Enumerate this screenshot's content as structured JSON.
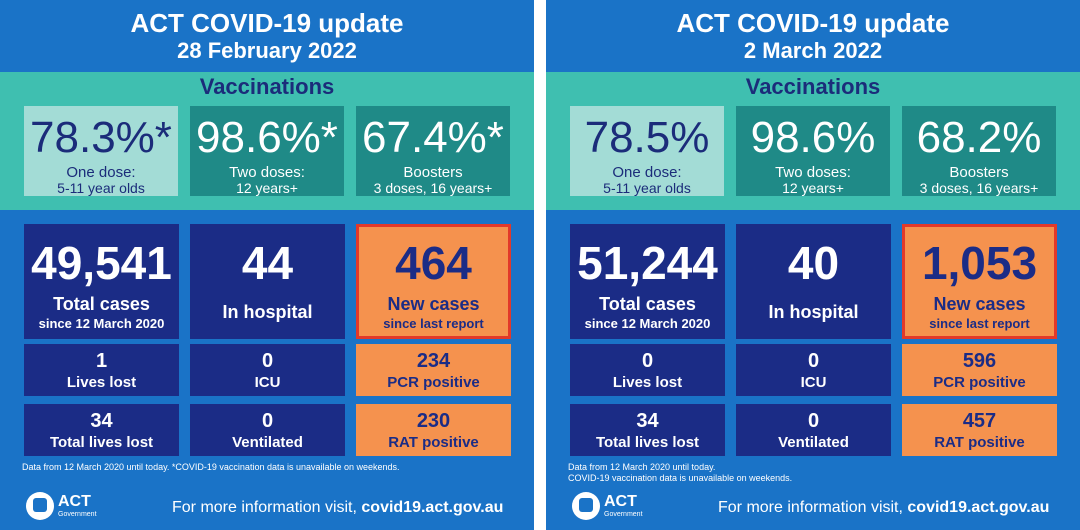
{
  "panels": [
    {
      "title": "ACT COVID-19 update",
      "date": "28 February 2022",
      "vaccinations": {
        "heading": "Vaccinations",
        "cards": [
          {
            "value": "78.3%*",
            "label": "One dose:",
            "sub": "5-11 year olds"
          },
          {
            "value": "98.6%*",
            "label": "Two doses:",
            "sub": "12 years+"
          },
          {
            "value": "67.4%*",
            "label": "Boosters",
            "sub": "3 doses, 16 years+"
          }
        ]
      },
      "stats": {
        "total_cases": {
          "value": "49,541",
          "label": "Total cases",
          "sub": "since 12 March 2020"
        },
        "in_hospital": {
          "value": "44",
          "label": "In hospital"
        },
        "new_cases": {
          "value": "464",
          "label": "New cases",
          "sub": "since last report"
        },
        "lives_lost": {
          "value": "1",
          "label": "Lives lost"
        },
        "icu": {
          "value": "0",
          "label": "ICU"
        },
        "pcr_positive": {
          "value": "234",
          "label": "PCR positive"
        },
        "total_lives_lost": {
          "value": "34",
          "label": "Total lives lost"
        },
        "ventilated": {
          "value": "0",
          "label": "Ventilated"
        },
        "rat_positive": {
          "value": "230",
          "label": "RAT positive"
        }
      },
      "footnote_1": "Data from 12 March 2020 until today.  *COVID-19 vaccination data is unavailable on weekends.",
      "footnote_2": "",
      "logo": {
        "text": "ACT",
        "sub": "Government"
      },
      "more_info": {
        "prefix": "For more information visit, ",
        "link": "covid19.act.gov.au"
      }
    },
    {
      "title": "ACT COVID-19 update",
      "date": "2 March 2022",
      "vaccinations": {
        "heading": "Vaccinations",
        "cards": [
          {
            "value": "78.5%",
            "label": "One dose:",
            "sub": "5-11 year olds"
          },
          {
            "value": "98.6%",
            "label": "Two doses:",
            "sub": "12 years+"
          },
          {
            "value": "68.2%",
            "label": "Boosters",
            "sub": "3 doses, 16 years+"
          }
        ]
      },
      "stats": {
        "total_cases": {
          "value": "51,244",
          "label": "Total cases",
          "sub": "since 12 March 2020"
        },
        "in_hospital": {
          "value": "40",
          "label": "In hospital"
        },
        "new_cases": {
          "value": "1,053",
          "label": "New cases",
          "sub": "since last report"
        },
        "lives_lost": {
          "value": "0",
          "label": "Lives lost"
        },
        "icu": {
          "value": "0",
          "label": "ICU"
        },
        "pcr_positive": {
          "value": "596",
          "label": "PCR positive"
        },
        "total_lives_lost": {
          "value": "34",
          "label": "Total lives lost"
        },
        "ventilated": {
          "value": "0",
          "label": "Ventilated"
        },
        "rat_positive": {
          "value": "457",
          "label": "RAT positive"
        }
      },
      "footnote_1": "Data from 12 March 2020 until today.",
      "footnote_2": "COVID-19 vaccination data is unavailable on weekends.",
      "logo": {
        "text": "ACT",
        "sub": "Government"
      },
      "more_info": {
        "prefix": "For more information visit, ",
        "link": "covid19.act.gov.au"
      }
    }
  ],
  "colors": {
    "background_blue": "#1a73c7",
    "navy": "#1b2c86",
    "teal_band": "#3fbfb0",
    "teal_card": "#1f8a87",
    "light_teal_card": "#a3dcd6",
    "orange": "#f5924e",
    "highlight_border": "#e2392a"
  }
}
